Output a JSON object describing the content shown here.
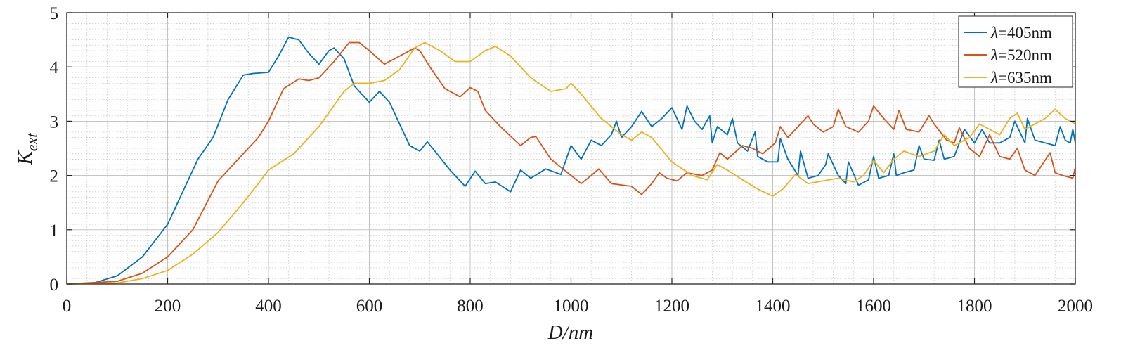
{
  "chart_data": {
    "type": "line",
    "title": "",
    "xlabel": "D/nm",
    "ylabel": {
      "main": "K",
      "sub": "ext"
    },
    "xlim": [
      0,
      2000
    ],
    "ylim": [
      0,
      5
    ],
    "xticks": [
      0,
      200,
      400,
      600,
      800,
      1000,
      1200,
      1400,
      1600,
      1800,
      2000
    ],
    "yticks": [
      0,
      1,
      2,
      3,
      4,
      5
    ],
    "grid": {
      "major": true,
      "minor": true
    },
    "legend_position": "top-right",
    "series": [
      {
        "name": "λ=405nm",
        "label_prefix": "λ",
        "label_suffix": "=405nm",
        "color": "#0072bd",
        "x": [
          0,
          50,
          100,
          150,
          200,
          230,
          260,
          290,
          320,
          350,
          370,
          400,
          420,
          440,
          460,
          480,
          500,
          520,
          530,
          550,
          570,
          600,
          620,
          640,
          660,
          680,
          700,
          715,
          730,
          760,
          790,
          810,
          830,
          850,
          880,
          900,
          920,
          950,
          980,
          1000,
          1020,
          1040,
          1060,
          1080,
          1090,
          1100,
          1120,
          1140,
          1160,
          1180,
          1200,
          1220,
          1230,
          1245,
          1260,
          1275,
          1280,
          1290,
          1310,
          1320,
          1330,
          1350,
          1365,
          1370,
          1390,
          1410,
          1415,
          1430,
          1450,
          1455,
          1470,
          1490,
          1505,
          1510,
          1530,
          1545,
          1550,
          1570,
          1590,
          1600,
          1610,
          1630,
          1640,
          1645,
          1660,
          1680,
          1690,
          1700,
          1720,
          1730,
          1740,
          1760,
          1780,
          1800,
          1815,
          1830,
          1850,
          1870,
          1880,
          1900,
          1905,
          1920,
          1940,
          1960,
          1970,
          1980,
          1990,
          1995,
          2000
        ],
        "y": [
          0,
          0.01,
          0.15,
          0.5,
          1.1,
          1.7,
          2.3,
          2.7,
          3.4,
          3.85,
          3.88,
          3.9,
          4.2,
          4.55,
          4.5,
          4.25,
          4.05,
          4.3,
          4.35,
          4.15,
          3.65,
          3.35,
          3.55,
          3.35,
          2.95,
          2.55,
          2.45,
          2.62,
          2.45,
          2.1,
          1.8,
          2.08,
          1.85,
          1.88,
          1.7,
          2.1,
          1.95,
          2.12,
          2.02,
          2.55,
          2.3,
          2.65,
          2.55,
          2.75,
          3.0,
          2.7,
          2.9,
          3.18,
          2.9,
          3.05,
          3.25,
          2.85,
          3.28,
          3.0,
          2.85,
          3.1,
          2.6,
          2.9,
          2.75,
          3.05,
          2.6,
          2.45,
          2.8,
          2.35,
          2.25,
          2.25,
          2.68,
          2.3,
          2.0,
          2.45,
          1.95,
          2.0,
          2.2,
          2.4,
          2.0,
          1.85,
          2.25,
          1.82,
          1.92,
          2.35,
          1.95,
          2.0,
          2.4,
          2.0,
          2.05,
          2.1,
          2.55,
          2.3,
          2.28,
          2.65,
          2.3,
          2.35,
          2.85,
          2.6,
          2.85,
          2.6,
          2.6,
          2.7,
          3.0,
          2.6,
          3.05,
          2.65,
          2.6,
          2.55,
          2.9,
          2.65,
          2.6,
          2.85,
          2.6
        ]
      },
      {
        "name": "λ=520nm",
        "label_prefix": "λ",
        "label_suffix": "=520nm",
        "color": "#d95319",
        "x": [
          0,
          100,
          150,
          200,
          250,
          300,
          350,
          380,
          400,
          430,
          460,
          480,
          500,
          530,
          560,
          580,
          600,
          630,
          660,
          690,
          700,
          720,
          750,
          780,
          800,
          815,
          830,
          860,
          900,
          920,
          930,
          960,
          1000,
          1020,
          1040,
          1055,
          1080,
          1120,
          1140,
          1160,
          1175,
          1190,
          1210,
          1230,
          1260,
          1280,
          1295,
          1310,
          1340,
          1360,
          1380,
          1405,
          1415,
          1430,
          1450,
          1470,
          1480,
          1500,
          1520,
          1530,
          1545,
          1570,
          1590,
          1600,
          1620,
          1640,
          1650,
          1665,
          1690,
          1710,
          1720,
          1745,
          1760,
          1770,
          1790,
          1810,
          1830,
          1850,
          1870,
          1885,
          1900,
          1920,
          1950,
          1960,
          1975,
          1995,
          2000
        ],
        "y": [
          0,
          0.05,
          0.2,
          0.5,
          1.0,
          1.9,
          2.4,
          2.7,
          3.0,
          3.6,
          3.78,
          3.75,
          3.8,
          4.1,
          4.45,
          4.45,
          4.3,
          4.05,
          4.2,
          4.35,
          4.3,
          4.0,
          3.6,
          3.45,
          3.62,
          3.55,
          3.2,
          2.9,
          2.55,
          2.7,
          2.72,
          2.3,
          2.0,
          1.85,
          2.0,
          2.12,
          1.85,
          1.8,
          1.65,
          1.85,
          2.05,
          1.95,
          1.9,
          2.05,
          2.0,
          2.1,
          2.42,
          2.3,
          2.55,
          2.5,
          2.4,
          2.6,
          2.9,
          2.7,
          2.9,
          3.1,
          2.95,
          2.8,
          2.9,
          3.22,
          2.9,
          2.8,
          3.0,
          3.28,
          3.05,
          2.85,
          3.2,
          2.85,
          2.8,
          3.1,
          2.95,
          2.65,
          2.6,
          2.88,
          2.5,
          2.35,
          2.75,
          2.35,
          2.3,
          2.5,
          2.1,
          2.0,
          2.42,
          2.05,
          2.0,
          1.95,
          2.15
        ]
      },
      {
        "name": "λ=635nm",
        "label_prefix": "λ",
        "label_suffix": "=635nm",
        "color": "#edb120",
        "x": [
          0,
          100,
          150,
          200,
          250,
          300,
          350,
          380,
          400,
          450,
          500,
          550,
          570,
          600,
          630,
          660,
          690,
          710,
          740,
          770,
          800,
          830,
          850,
          880,
          920,
          960,
          990,
          1000,
          1020,
          1060,
          1100,
          1120,
          1140,
          1160,
          1200,
          1240,
          1270,
          1290,
          1310,
          1340,
          1370,
          1400,
          1420,
          1445,
          1470,
          1500,
          1530,
          1560,
          1580,
          1600,
          1620,
          1640,
          1660,
          1690,
          1720,
          1740,
          1760,
          1790,
          1810,
          1830,
          1850,
          1870,
          1885,
          1900,
          1920,
          1940,
          1960,
          1980,
          2000
        ],
        "y": [
          0,
          0.02,
          0.1,
          0.25,
          0.55,
          0.95,
          1.5,
          1.85,
          2.1,
          2.4,
          2.9,
          3.55,
          3.7,
          3.7,
          3.75,
          3.95,
          4.35,
          4.45,
          4.3,
          4.1,
          4.1,
          4.3,
          4.38,
          4.2,
          3.8,
          3.55,
          3.6,
          3.7,
          3.5,
          3.05,
          2.75,
          2.65,
          2.8,
          2.7,
          2.25,
          2.0,
          1.92,
          2.2,
          2.1,
          1.92,
          1.75,
          1.62,
          1.75,
          2.02,
          1.85,
          1.9,
          1.95,
          1.88,
          2.0,
          2.28,
          2.05,
          2.3,
          2.45,
          2.35,
          2.45,
          2.75,
          2.55,
          2.7,
          2.95,
          2.85,
          2.75,
          3.05,
          3.15,
          2.85,
          2.95,
          3.05,
          3.22,
          3.05,
          2.95
        ]
      }
    ]
  }
}
